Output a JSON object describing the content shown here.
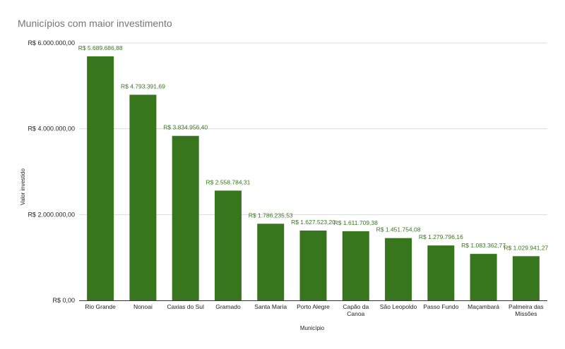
{
  "chart_data": {
    "type": "bar",
    "title": "Municípios com maior investimento",
    "xlabel": "Município",
    "ylabel": "Valor investido",
    "ylim": [
      0,
      6000000
    ],
    "yticks": [
      0,
      2000000,
      4000000,
      6000000
    ],
    "ytick_labels": [
      "R$ 0,00",
      "R$ 2.000.000,00",
      "R$ 4.000.000,00",
      "R$ 6.000.000,00"
    ],
    "grid": true,
    "legend": "none",
    "categories": [
      [
        "Rio Grande"
      ],
      [
        "Nonoai"
      ],
      [
        "Caxias do Sul"
      ],
      [
        "Gramado"
      ],
      [
        "Santa Maria"
      ],
      [
        "Porto Alegre"
      ],
      [
        "Capão da",
        "Canoa"
      ],
      [
        "São Leopoldo"
      ],
      [
        "Passo Fundo"
      ],
      [
        "Maçambará"
      ],
      [
        "Palmeira das",
        "Missões"
      ]
    ],
    "values": [
      5689686.88,
      4793391.69,
      3834956.4,
      2558784.31,
      1786235.53,
      1627523.2,
      1611709.38,
      1451754.08,
      1279796.16,
      1083362.77,
      1029941.27
    ],
    "data_labels": [
      "R$ 5.689.686,88",
      "R$ 4.793.391,69",
      "R$ 3.834.956,40",
      "R$ 2.558.784,31",
      "R$ 1.786.235,53",
      "R$ 1.627.523,20",
      "R$ 1.611.709,38",
      "R$ 1.451.754,08",
      "R$ 1.279.796,16",
      "R$ 1.083.362,77",
      "R$ 1.029.941,27"
    ],
    "colors": {
      "bar": "#38761d",
      "data_label": "#38761d",
      "grid": "#d9d9d9",
      "axis": "#333333"
    }
  }
}
